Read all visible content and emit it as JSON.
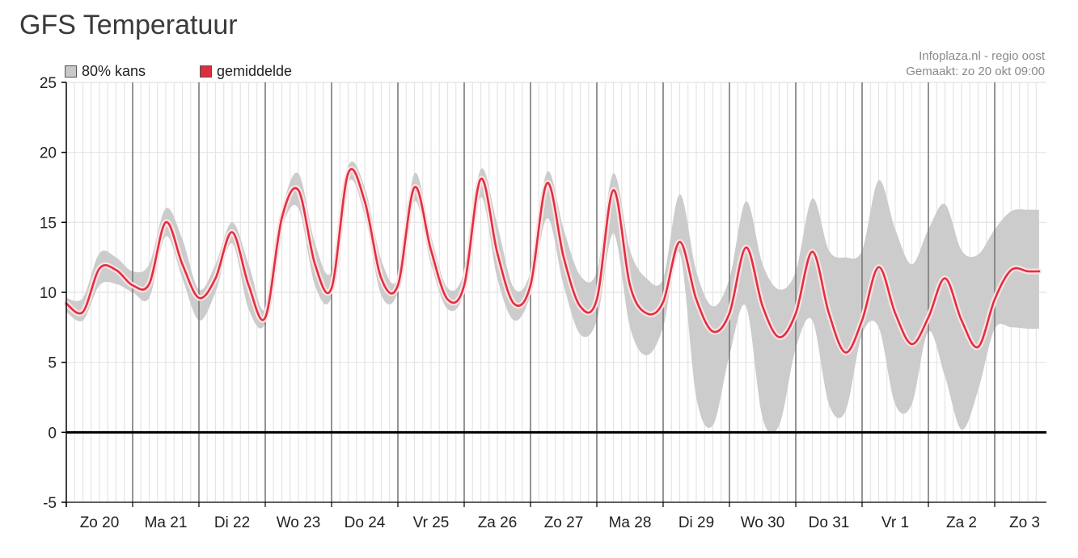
{
  "page": {
    "title": "GFS Temperatuur"
  },
  "credit": {
    "line1": "Infoplaza.nl - regio oost",
    "line2": "Gemaakt: zo 20 okt 09:00"
  },
  "legend": {
    "band_label": "80% kans",
    "mean_label": "gemiddelde"
  },
  "colors": {
    "band": "#cccccc",
    "mean": "#e03040",
    "mean_halo": "#fbe2e4",
    "grid_minor": "#e4e4e4",
    "grid_major": "#7a7a7a",
    "zero_line": "#000000"
  },
  "chart_data": {
    "type": "area",
    "title": "GFS Temperatuur",
    "xlabel": "",
    "ylabel": "",
    "ylim": [
      -5,
      25
    ],
    "yticks": [
      25,
      20,
      15,
      10,
      5,
      0,
      -5
    ],
    "xlim": [
      0.0,
      14.67
    ],
    "day_labels": [
      "Zo 20",
      "Ma 21",
      "Di 22",
      "Wo 23",
      "Do 24",
      "Vr 25",
      "Za 26",
      "Zo 27",
      "Ma 28",
      "Di 29",
      "Wo 30",
      "Do 31",
      "Vr 1",
      "Za 2",
      "Zo 3"
    ],
    "grid": true,
    "legend_position": "top-left",
    "series": [
      {
        "name": "80% kans",
        "kind": "band",
        "x": [
          0,
          0.25,
          0.5,
          0.75,
          1.0,
          1.25,
          1.5,
          1.75,
          2.0,
          2.25,
          2.5,
          2.75,
          3.0,
          3.25,
          3.5,
          3.75,
          4.0,
          4.25,
          4.5,
          4.75,
          5.0,
          5.25,
          5.5,
          5.75,
          6.0,
          6.25,
          6.5,
          6.75,
          7.0,
          7.25,
          7.5,
          7.75,
          8.0,
          8.25,
          8.5,
          8.75,
          9.0,
          9.25,
          9.5,
          9.75,
          10.0,
          10.25,
          10.5,
          10.75,
          11.0,
          11.25,
          11.5,
          11.75,
          12.0,
          12.25,
          12.5,
          12.75,
          13.0,
          13.25,
          13.5,
          13.75,
          14.0,
          14.25,
          14.5,
          14.67
        ],
        "low": [
          8.6,
          8.0,
          10.5,
          10.6,
          10.0,
          9.6,
          14.0,
          11.0,
          8.0,
          10.0,
          13.5,
          8.8,
          7.8,
          14.5,
          16.0,
          10.5,
          9.7,
          17.8,
          15.5,
          9.8,
          10.0,
          16.5,
          12.0,
          8.8,
          10.0,
          16.8,
          11.0,
          8.0,
          9.8,
          15.3,
          10.5,
          7.0,
          8.0,
          14.2,
          7.5,
          5.5,
          7.5,
          12.8,
          2.5,
          0.5,
          5.5,
          9.0,
          1.0,
          0.5,
          6.0,
          8.0,
          2.0,
          1.5,
          7.0,
          7.5,
          2.0,
          2.0,
          7.2,
          4.0,
          0.2,
          3.0,
          7.4,
          7.5,
          7.4,
          7.4
        ],
        "high": [
          9.6,
          9.6,
          12.8,
          12.5,
          11.5,
          12.0,
          16.0,
          13.8,
          10.2,
          12.0,
          15.0,
          12.0,
          8.8,
          15.8,
          18.5,
          13.5,
          11.5,
          19.0,
          17.5,
          12.3,
          11.0,
          18.5,
          14.0,
          10.3,
          11.5,
          18.8,
          14.8,
          10.3,
          11.5,
          18.6,
          14.5,
          11.2,
          11.5,
          18.5,
          13.0,
          11.0,
          11.0,
          17.0,
          11.5,
          9.0,
          11.0,
          16.5,
          12.0,
          10.2,
          11.5,
          16.7,
          13.0,
          12.5,
          13.0,
          18.0,
          14.5,
          12.0,
          14.5,
          16.3,
          13.0,
          12.7,
          14.5,
          15.8,
          15.9,
          15.9
        ]
      },
      {
        "name": "gemiddelde",
        "kind": "line",
        "x": [
          0,
          0.25,
          0.5,
          0.75,
          1.0,
          1.25,
          1.5,
          1.75,
          2.0,
          2.25,
          2.5,
          2.75,
          3.0,
          3.25,
          3.5,
          3.75,
          4.0,
          4.25,
          4.5,
          4.75,
          5.0,
          5.25,
          5.5,
          5.75,
          6.0,
          6.25,
          6.5,
          6.75,
          7.0,
          7.25,
          7.5,
          7.75,
          8.0,
          8.25,
          8.5,
          8.75,
          9.0,
          9.25,
          9.5,
          9.75,
          10.0,
          10.25,
          10.5,
          10.75,
          11.0,
          11.25,
          11.5,
          11.75,
          12.0,
          12.25,
          12.5,
          12.75,
          13.0,
          13.25,
          13.5,
          13.75,
          14.0,
          14.25,
          14.5,
          14.67
        ],
        "y": [
          9.2,
          8.6,
          11.7,
          11.6,
          10.5,
          10.6,
          15.0,
          12.0,
          9.6,
          11.0,
          14.3,
          10.5,
          8.2,
          15.3,
          17.3,
          12.0,
          10.3,
          18.5,
          16.5,
          11.0,
          10.5,
          17.5,
          13.0,
          9.5,
          10.5,
          18.1,
          12.8,
          9.2,
          10.5,
          17.8,
          12.5,
          9.0,
          9.5,
          17.3,
          10.5,
          8.5,
          9.3,
          13.6,
          9.5,
          7.2,
          8.5,
          13.2,
          9.0,
          6.8,
          8.5,
          12.9,
          8.5,
          5.7,
          8.0,
          11.8,
          8.5,
          6.3,
          8.2,
          11.0,
          8.0,
          6.1,
          9.5,
          11.6,
          11.5,
          11.5
        ]
      }
    ]
  }
}
